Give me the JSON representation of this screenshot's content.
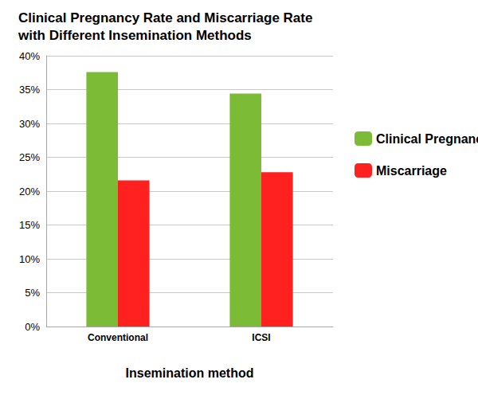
{
  "chart_data": {
    "type": "bar",
    "title": "Clinical Pregnancy Rate and Miscarriage Rate\nwith Different Insemination Methods",
    "x_label": "Insemination method",
    "categories": [
      "Conventional",
      "ICSI"
    ],
    "series": [
      {
        "name": "Clinical Pregnancy",
        "color": "#7cbb36",
        "values": [
          37.6,
          34.4
        ]
      },
      {
        "name": "Miscarriage",
        "color": "#ff2020",
        "values": [
          21.6,
          22.8
        ]
      }
    ],
    "ylim": [
      0,
      40
    ],
    "yticks": [
      {
        "value": 0,
        "label": "0%"
      },
      {
        "value": 5,
        "label": "5%"
      },
      {
        "value": 10,
        "label": "10%"
      },
      {
        "value": 15,
        "label": "15%"
      },
      {
        "value": 20,
        "label": "20%"
      },
      {
        "value": 25,
        "label": "25%"
      },
      {
        "value": 30,
        "label": "30%"
      },
      {
        "value": 35,
        "label": "35%"
      },
      {
        "value": 40,
        "label": "40%"
      }
    ],
    "grid": true,
    "legend": "right"
  }
}
